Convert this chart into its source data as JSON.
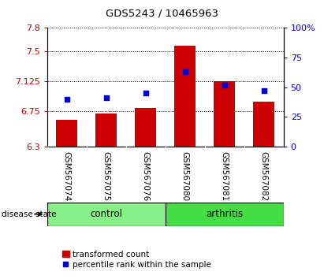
{
  "title": "GDS5243 / 10465963",
  "categories": [
    "GSM567074",
    "GSM567075",
    "GSM567076",
    "GSM567080",
    "GSM567081",
    "GSM567082"
  ],
  "bar_values": [
    6.64,
    6.72,
    6.79,
    7.57,
    7.125,
    6.87
  ],
  "percentile_values": [
    40,
    41,
    45,
    63,
    52,
    47
  ],
  "ylim_left": [
    6.3,
    7.8
  ],
  "ylim_right": [
    0,
    100
  ],
  "yticks_left": [
    6.3,
    6.75,
    7.125,
    7.5,
    7.8
  ],
  "ytick_labels_left": [
    "6.3",
    "6.75",
    "7.125",
    "7.5",
    "7.8"
  ],
  "yticks_right": [
    0,
    25,
    50,
    75,
    100
  ],
  "ytick_labels_right": [
    "0",
    "25",
    "50",
    "75",
    "100%"
  ],
  "bar_color": "#cc0000",
  "dot_color": "#0000cc",
  "groups": [
    {
      "label": "control",
      "indices": [
        0,
        1,
        2
      ],
      "color": "#88ee88"
    },
    {
      "label": "arthritis",
      "indices": [
        3,
        4,
        5
      ],
      "color": "#44dd44"
    }
  ],
  "disease_state_label": "disease state",
  "legend_bar_label": "transformed count",
  "legend_dot_label": "percentile rank within the sample",
  "background_color": "#ffffff",
  "tick_label_area_color": "#bbbbbb",
  "title_fontsize": 9.5,
  "axis_fontsize": 8,
  "label_fontsize": 7,
  "group_fontsize": 8.5
}
